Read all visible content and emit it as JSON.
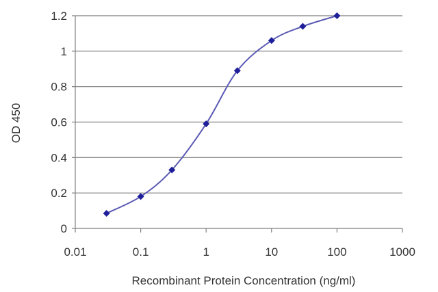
{
  "chart_data": {
    "type": "line",
    "title": "",
    "xlabel": "Recombinant Protein Concentration (ng/ml)",
    "ylabel": "OD 450",
    "x_scale": "log",
    "xlim": [
      0.01,
      1000
    ],
    "ylim": [
      0,
      1.2
    ],
    "x_ticks": [
      "0.01",
      "0.1",
      "1",
      "10",
      "100",
      "1000"
    ],
    "y_ticks": [
      "0",
      "0.2",
      "0.4",
      "0.6",
      "0.8",
      "1",
      "1.2"
    ],
    "grid": "horizontal",
    "series": [
      {
        "x": [
          0.03,
          0.1,
          0.3,
          1,
          3,
          10,
          30,
          100
        ],
        "y": [
          0.085,
          0.18,
          0.33,
          0.59,
          0.89,
          1.06,
          1.14,
          1.2
        ]
      }
    ],
    "colors": {
      "line": "#5a5ab4",
      "marker": "#1f1f9a",
      "grid": "#7f7f7f"
    }
  }
}
